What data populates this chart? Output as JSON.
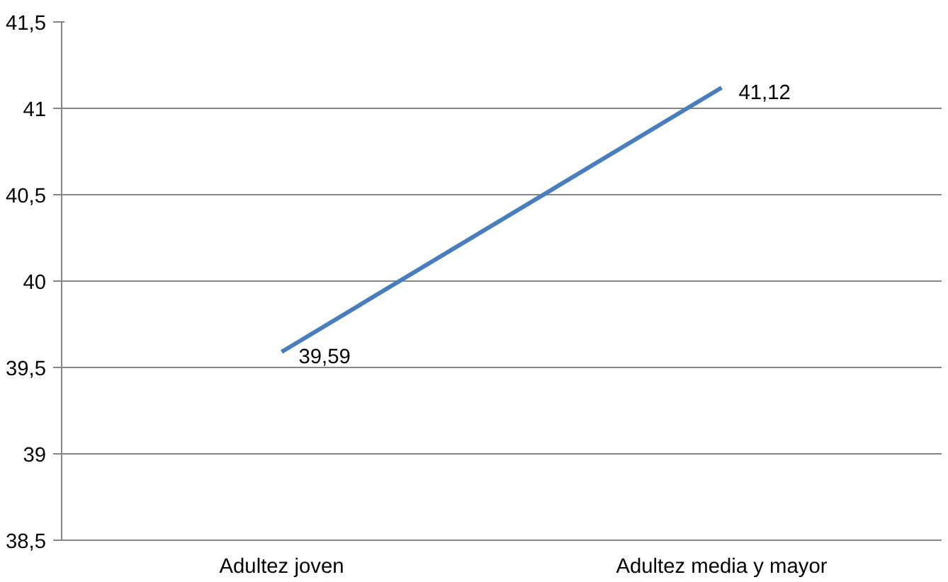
{
  "chart_data": {
    "type": "line",
    "categories": [
      "Adultez joven",
      "Adultez media y mayor"
    ],
    "series": [
      {
        "color": "#4a7ebb",
        "values": [
          39.59,
          41.12
        ],
        "value_labels": [
          "39,59",
          "41,12"
        ]
      }
    ],
    "ylim": [
      38.5,
      41.5
    ],
    "yticks": [
      {
        "value": 38.5,
        "label": "38,5"
      },
      {
        "value": 39,
        "label": "39"
      },
      {
        "value": 39.5,
        "label": "39,5"
      },
      {
        "value": 40,
        "label": "40"
      },
      {
        "value": 40.5,
        "label": "40,5"
      },
      {
        "value": 41,
        "label": "41"
      },
      {
        "value": 41.5,
        "label": "41,5"
      }
    ],
    "grid": "y",
    "marker": "none",
    "line_style": "solid"
  }
}
